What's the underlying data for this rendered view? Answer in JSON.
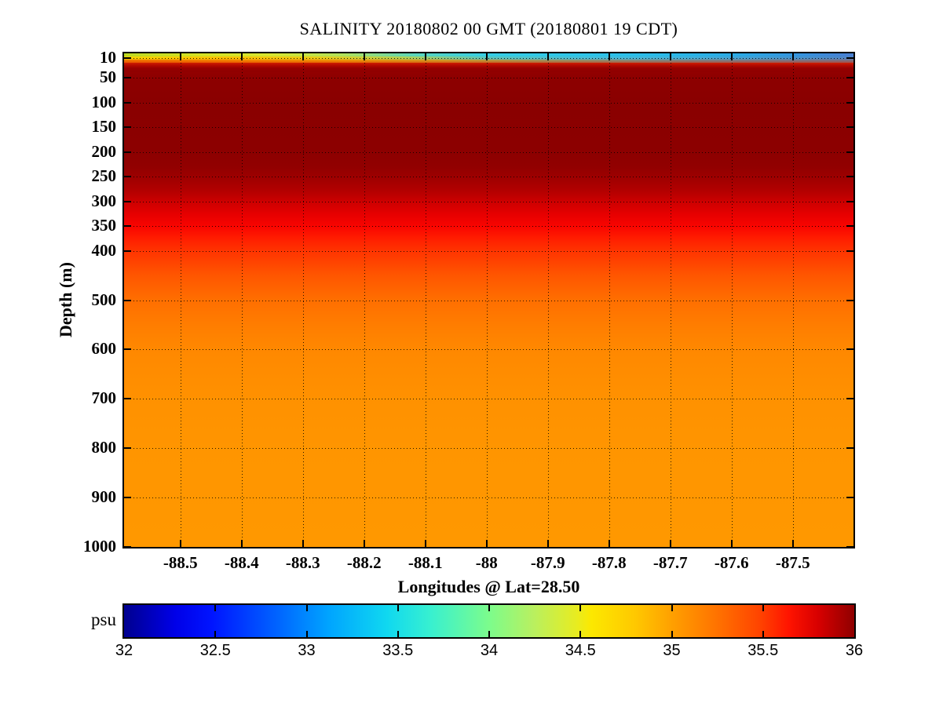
{
  "title": "SALINITY 20180802 00 GMT (20180801 19 CDT)",
  "axes": {
    "xlabel": "Longitudes @ Lat=28.50",
    "ylabel": "Depth (m)",
    "x_range": [
      -88.592,
      -87.401
    ],
    "y_range": [
      0,
      1000
    ],
    "x_ticks": [
      -88.5,
      -88.4,
      -88.3,
      -88.2,
      -88.1,
      -88,
      -87.9,
      -87.8,
      -87.7,
      -87.6,
      -87.5
    ],
    "x_tick_labels": [
      "-88.5",
      "-88.4",
      "-88.3",
      "-88.2",
      "-88.1",
      "-88",
      "-87.9",
      "-87.8",
      "-87.7",
      "-87.6",
      "-87.5"
    ],
    "y_ticks": [
      10,
      50,
      100,
      150,
      200,
      250,
      300,
      350,
      400,
      500,
      600,
      700,
      800,
      900,
      1000
    ],
    "grid": "dotted"
  },
  "colorbar": {
    "label": "psu",
    "range": [
      32,
      36
    ],
    "ticks": [
      32,
      32.5,
      33,
      33.5,
      34,
      34.5,
      35,
      35.5,
      36
    ],
    "tick_labels": [
      "32",
      "32.5",
      "33",
      "33.5",
      "34",
      "34.5",
      "35",
      "35.5",
      "36"
    ],
    "colormap": "jet"
  },
  "chart_data": {
    "type": "heatmap",
    "title": "SALINITY 20180802 00 GMT (20180801 19 CDT)",
    "xlabel": "Longitudes @ Lat=28.50",
    "ylabel": "Depth (m)",
    "value_label": "psu",
    "x_range": [
      -88.59,
      -87.4
    ],
    "y_range": [
      0,
      1000
    ],
    "value_range": [
      32,
      36
    ],
    "colormap": "jet",
    "grid": true,
    "colorbar_position": "bottom",
    "mean_depth_profile": {
      "depth_m": [
        0,
        5,
        10,
        15,
        30,
        50,
        100,
        200,
        250,
        300,
        350,
        400,
        450,
        500,
        600,
        700,
        800,
        900,
        1000
      ],
      "salinity_psu": [
        33.5,
        34.0,
        34.6,
        35.3,
        36.0,
        36.0,
        36.0,
        36.0,
        35.95,
        35.85,
        35.65,
        35.45,
        35.3,
        35.2,
        35.05,
        35.0,
        34.98,
        34.97,
        34.97
      ]
    },
    "surface_salinity_by_longitude": {
      "longitude": [
        -88.59,
        -88.4,
        -88.2,
        -88.0,
        -87.8,
        -87.6,
        -87.4
      ],
      "salinity_psu": [
        34.3,
        34.2,
        33.8,
        33.5,
        33.4,
        33.3,
        33.0
      ]
    },
    "description": "Vertical salinity section versus longitude at Lat=28.50: thin low-salinity surface layer (about 32.5-34.5 psu) in the upper ~15 m, subsurface salinity maximum (~36 psu) from about 30-300 m depth, then gradual decrease to about 35 psu below 600 m."
  }
}
